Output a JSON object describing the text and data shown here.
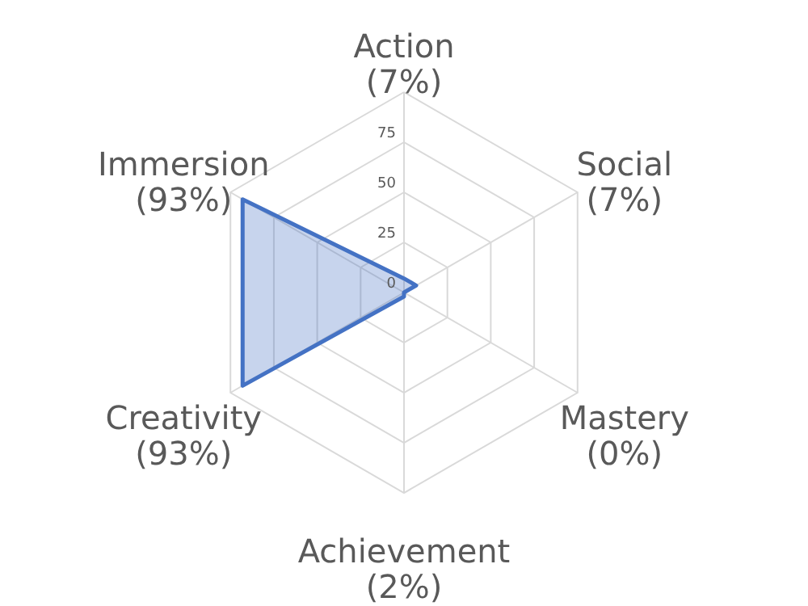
{
  "chart_data": {
    "type": "radar",
    "categories": [
      "Action",
      "Social",
      "Mastery",
      "Achievement",
      "Creativity",
      "Immersion"
    ],
    "value_labels": [
      "(7%)",
      "(7%)",
      "(0%)",
      "(2%)",
      "(93%)",
      "(93%)"
    ],
    "series": [
      {
        "color": "#4472c4",
        "values": [
          7,
          7,
          0,
          2,
          93,
          93
        ]
      }
    ],
    "ylim": [
      0,
      100
    ],
    "yticks": [
      0,
      25,
      50,
      75
    ],
    "grid": true
  }
}
